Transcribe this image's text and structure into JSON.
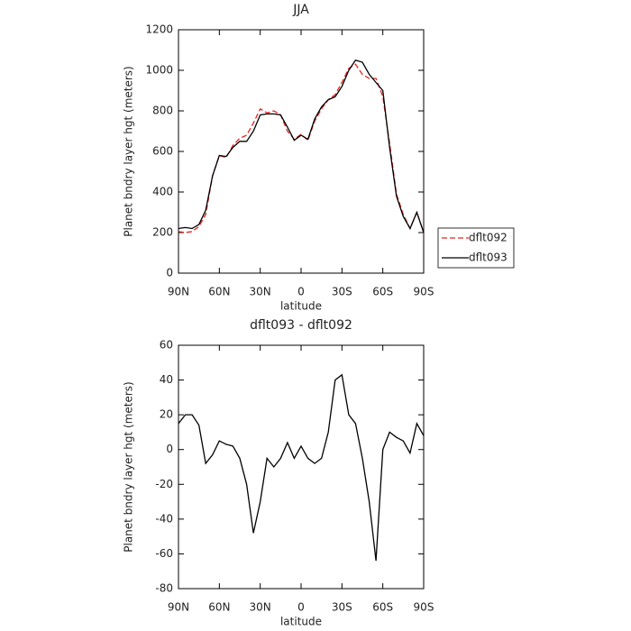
{
  "chart_data": [
    {
      "type": "line",
      "title": "JJA",
      "xlabel": "latitude",
      "ylabel": "Planet bndry layer hgt (meters)",
      "x": [
        90,
        85,
        80,
        75,
        70,
        65,
        60,
        55,
        50,
        45,
        40,
        35,
        30,
        25,
        20,
        15,
        10,
        5,
        0,
        -5,
        -10,
        -15,
        -20,
        -25,
        -30,
        -35,
        -40,
        -45,
        -50,
        -55,
        -60,
        -65,
        -70,
        -75,
        -80,
        -85,
        -90
      ],
      "series": [
        {
          "name": "dflt092",
          "color": "#e8231c",
          "linestyle": "dashed",
          "values": [
            205,
            200,
            205,
            230,
            290,
            480,
            580,
            570,
            630,
            665,
            680,
            740,
            810,
            790,
            800,
            780,
            700,
            660,
            685,
            655,
            750,
            810,
            855,
            880,
            940,
            1010,
            1030,
            980,
            960,
            960,
            870,
            640,
            390,
            290,
            220,
            300,
            200
          ]
        },
        {
          "name": "dflt093",
          "color": "#000000",
          "linestyle": "solid",
          "values": [
            220,
            225,
            220,
            240,
            310,
            480,
            580,
            575,
            620,
            650,
            650,
            700,
            780,
            785,
            785,
            780,
            720,
            655,
            680,
            660,
            760,
            820,
            855,
            870,
            920,
            1000,
            1050,
            1040,
            980,
            940,
            900,
            620,
            380,
            280,
            220,
            300,
            200
          ]
        }
      ],
      "xlim": [
        90,
        -90
      ],
      "ylim": [
        0,
        1200
      ],
      "xticks": [
        {
          "value": 90,
          "label": "90N"
        },
        {
          "value": 60,
          "label": "60N"
        },
        {
          "value": 30,
          "label": "30N"
        },
        0,
        {
          "value": -30,
          "label": "30S"
        },
        {
          "value": -60,
          "label": "60S"
        },
        {
          "value": -90,
          "label": "90S"
        }
      ],
      "yticks": [
        0,
        200,
        400,
        600,
        800,
        1000,
        1200
      ],
      "legend": "right"
    },
    {
      "type": "line",
      "title": "dflt093 - dflt092",
      "xlabel": "latitude",
      "ylabel": "Planet bndry layer hgt (meters)",
      "x": [
        90,
        85,
        80,
        75,
        70,
        65,
        60,
        55,
        50,
        45,
        40,
        35,
        30,
        25,
        20,
        15,
        10,
        5,
        0,
        -5,
        -10,
        -15,
        -20,
        -25,
        -30,
        -35,
        -40,
        -45,
        -50,
        -55,
        -60,
        -65,
        -70,
        -75,
        -80,
        -85,
        -90
      ],
      "series": [
        {
          "name": null,
          "color": "#000000",
          "linestyle": "solid",
          "values": [
            15,
            20,
            20,
            14,
            -8,
            -3,
            5,
            3,
            2,
            -5,
            -20,
            -48,
            -30,
            -5,
            -10,
            -5,
            4,
            -5,
            2,
            -5,
            -8,
            -5,
            10,
            40,
            43,
            20,
            15,
            -5,
            -30,
            -64,
            0,
            10,
            7,
            5,
            -2,
            15,
            8
          ]
        }
      ],
      "xlim": [
        90,
        -90
      ],
      "ylim": [
        -80,
        60
      ],
      "xticks": [
        {
          "value": 90,
          "label": "90N"
        },
        {
          "value": 60,
          "label": "60N"
        },
        {
          "value": 30,
          "label": "30N"
        },
        0,
        {
          "value": -30,
          "label": "30S"
        },
        {
          "value": -60,
          "label": "60S"
        },
        {
          "value": -90,
          "label": "90S"
        }
      ],
      "yticks": [
        -80,
        -60,
        -40,
        -20,
        0,
        20,
        40,
        60
      ]
    }
  ]
}
